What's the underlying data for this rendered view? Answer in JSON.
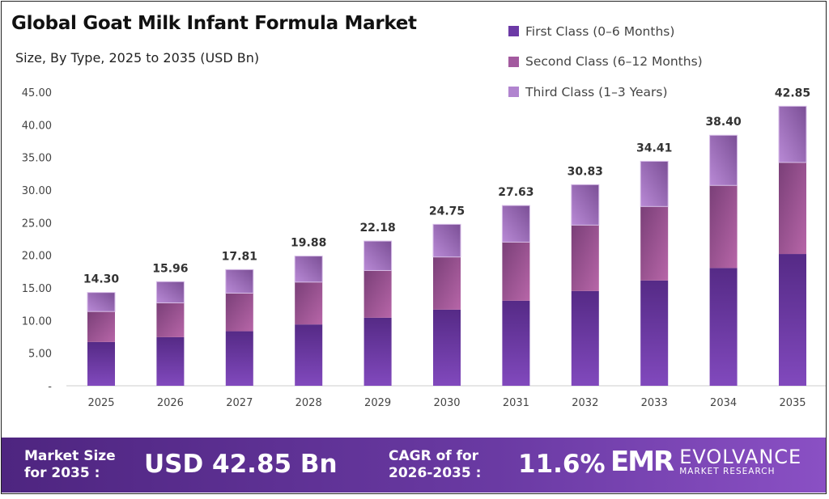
{
  "chart_data": {
    "type": "bar",
    "stacked": true,
    "title": "Global Goat Milk Infant Formula Market",
    "subtitle": "Size, By Type, 2025 to 2035 (USD Bn)",
    "categories": [
      "2025",
      "2026",
      "2027",
      "2028",
      "2029",
      "2030",
      "2031",
      "2032",
      "2033",
      "2034",
      "2035"
    ],
    "series": [
      {
        "name": "First Class (0–6 Months)",
        "color": "#6c3aa6",
        "values": [
          6.71,
          7.45,
          8.36,
          9.4,
          10.43,
          11.67,
          13.04,
          14.53,
          16.14,
          18.05,
          20.2
        ]
      },
      {
        "name": "Second Class (6–12 Months)",
        "color": "#a35a9f",
        "values": [
          4.67,
          5.26,
          5.84,
          6.49,
          7.24,
          8.07,
          8.98,
          10.1,
          11.34,
          12.66,
          14.03
        ]
      },
      {
        "name": "Third Class (1–3 Years)",
        "color": "#b184cf",
        "values": [
          2.92,
          3.25,
          3.61,
          3.99,
          4.51,
          5.01,
          5.61,
          6.2,
          6.93,
          7.69,
          8.62
        ]
      }
    ],
    "totals": [
      "14.30",
      "15.96",
      "17.81",
      "19.88",
      "22.18",
      "24.75",
      "27.63",
      "30.83",
      "34.41",
      "38.40",
      "42.85"
    ],
    "yticks": [
      "-",
      "5.00",
      "10.00",
      "15.00",
      "20.00",
      "25.00",
      "30.00",
      "35.00",
      "40.00",
      "45.00"
    ],
    "ylim": [
      0,
      45
    ],
    "grid": false,
    "legend_position": "top-right"
  },
  "footer": {
    "market_label_1": "Market Size",
    "market_label_2": "for 2035 :",
    "market_value": "USD 42.85 Bn",
    "cagr_label_1": "CAGR of for",
    "cagr_label_2": "2026-2035 :",
    "cagr_value": "11.6%",
    "logo_mark": "EMR",
    "logo_name": "EVOLVANCE",
    "logo_sub": "MARKET RESEARCH"
  }
}
